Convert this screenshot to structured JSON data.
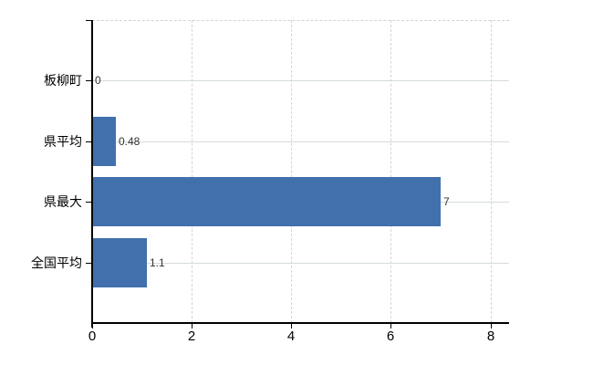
{
  "chart": {
    "background_color": "#ffffff",
    "bar_color": "#4170ad",
    "axis_color": "#000000",
    "hgrid_color": "#d4ddd4",
    "vgrid_color": "#d9d2d5",
    "value_label_color": "#333333",
    "tick_label_color": "#000000"
  },
  "chart_data": {
    "type": "bar",
    "orientation": "horizontal",
    "title": "",
    "xlabel": "",
    "ylabel": "",
    "categories": [
      "板柳町",
      "県平均",
      "県最大",
      "全国平均"
    ],
    "values": [
      0,
      0.48,
      7,
      1.1
    ],
    "value_labels": [
      "0",
      "0.48",
      "7",
      "1.1"
    ],
    "xlim": [
      0,
      8.375
    ],
    "xticks": [
      0,
      2,
      4,
      6,
      8
    ],
    "xtick_labels": [
      "0",
      "2",
      "4",
      "6",
      "8"
    ],
    "grid": true,
    "legend": false
  }
}
